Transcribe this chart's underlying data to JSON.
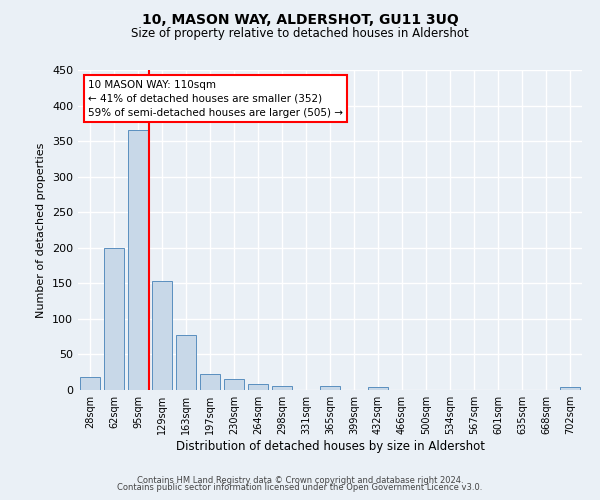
{
  "title": "10, MASON WAY, ALDERSHOT, GU11 3UQ",
  "subtitle": "Size of property relative to detached houses in Aldershot",
  "xlabel": "Distribution of detached houses by size in Aldershot",
  "ylabel": "Number of detached properties",
  "bin_labels": [
    "28sqm",
    "62sqm",
    "95sqm",
    "129sqm",
    "163sqm",
    "197sqm",
    "230sqm",
    "264sqm",
    "298sqm",
    "331sqm",
    "365sqm",
    "399sqm",
    "432sqm",
    "466sqm",
    "500sqm",
    "534sqm",
    "567sqm",
    "601sqm",
    "635sqm",
    "668sqm",
    "702sqm"
  ],
  "bar_values": [
    18,
    200,
    365,
    153,
    78,
    23,
    15,
    8,
    5,
    0,
    5,
    0,
    4,
    0,
    0,
    0,
    0,
    0,
    0,
    0,
    4
  ],
  "bar_color": "#c8d8e8",
  "bar_edgecolor": "#5a8fbf",
  "background_color": "#eaf0f6",
  "grid_color": "#ffffff",
  "ylim": [
    0,
    450
  ],
  "yticks": [
    0,
    50,
    100,
    150,
    200,
    250,
    300,
    350,
    400,
    450
  ],
  "annotation_title": "10 MASON WAY: 110sqm",
  "annotation_line1": "← 41% of detached houses are smaller (352)",
  "annotation_line2": "59% of semi-detached houses are larger (505) →",
  "footer_line1": "Contains HM Land Registry data © Crown copyright and database right 2024.",
  "footer_line2": "Contains public sector information licensed under the Open Government Licence v3.0."
}
